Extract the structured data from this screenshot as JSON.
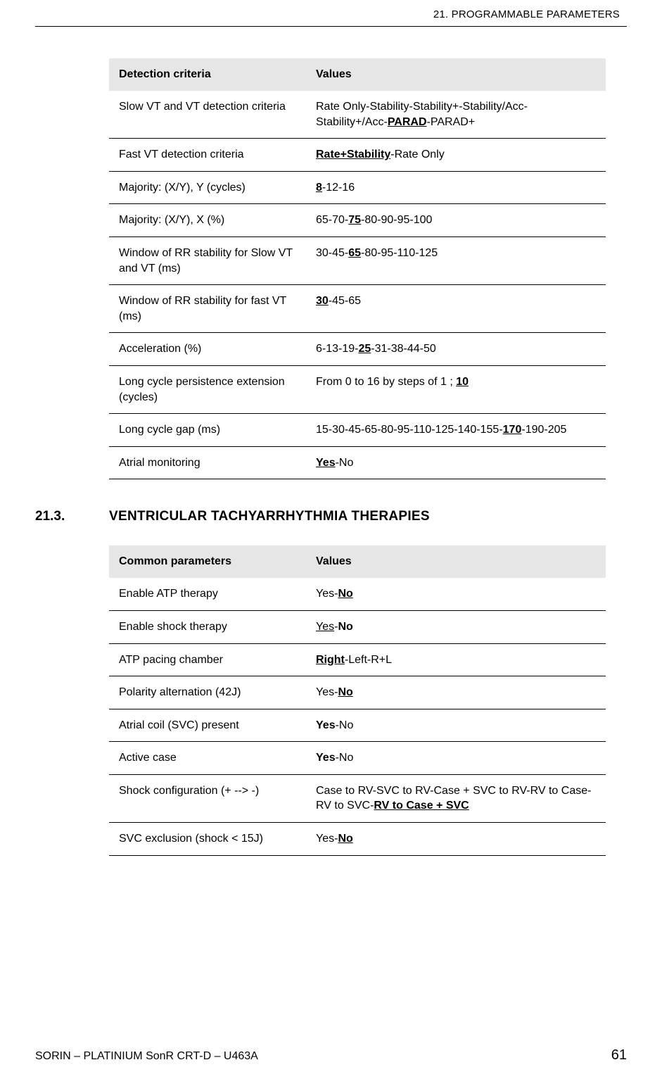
{
  "header": {
    "chapter": "21.  PROGRAMMABLE PARAMETERS"
  },
  "table1": {
    "col1": "Detection criteria",
    "col2": "Values",
    "rows": [
      {
        "label": "Slow VT and VT detection criteria",
        "value_segments": [
          {
            "t": "Rate Only-Stability-Stability+-Stability/Acc-Stability+/Acc-"
          },
          {
            "t": "PARAD",
            "def": true
          },
          {
            "t": "-PARAD+"
          }
        ]
      },
      {
        "label": "Fast VT detection criteria",
        "value_segments": [
          {
            "t": "Rate+Stability",
            "def": true
          },
          {
            "t": "-Rate Only"
          }
        ]
      },
      {
        "label": "Majority: (X/Y), Y (cycles)",
        "value_segments": [
          {
            "t": "8",
            "def": true
          },
          {
            "t": "-12-16"
          }
        ]
      },
      {
        "label": "Majority: (X/Y), X (%)",
        "value_segments": [
          {
            "t": "65-70-"
          },
          {
            "t": "75",
            "def": true
          },
          {
            "t": "-80-90-95-100"
          }
        ]
      },
      {
        "label": "Window of RR stability for Slow VT and VT (ms)",
        "value_segments": [
          {
            "t": "30-45-"
          },
          {
            "t": "65",
            "def": true
          },
          {
            "t": "-80-95-110-125"
          }
        ]
      },
      {
        "label": "Window of RR stability for fast VT (ms)",
        "value_segments": [
          {
            "t": "30",
            "def": true
          },
          {
            "t": "-45-65"
          }
        ]
      },
      {
        "label": "Acceleration (%)",
        "value_segments": [
          {
            "t": "6-13-19-"
          },
          {
            "t": "25",
            "def": true
          },
          {
            "t": "-31-38-44-50"
          }
        ]
      },
      {
        "label": "Long cycle persistence extension (cycles)",
        "value_segments": [
          {
            "t": "From 0 to 16 by steps of 1 ; "
          },
          {
            "t": "10",
            "def": true
          }
        ]
      },
      {
        "label": "Long cycle gap (ms)",
        "value_segments": [
          {
            "t": "15-30-45-65-80-95-110-125-140-155-"
          },
          {
            "t": "170",
            "def": true
          },
          {
            "t": "-190-205"
          }
        ]
      },
      {
        "label": "Atrial monitoring",
        "value_segments": [
          {
            "t": "Yes",
            "def": true
          },
          {
            "t": "-No"
          }
        ]
      }
    ]
  },
  "section": {
    "number": "21.3.",
    "title": "VENTRICULAR TACHYARRHYTHMIA THERAPIES"
  },
  "table2": {
    "col1": "Common parameters",
    "col2": "Values",
    "rows": [
      {
        "label": "Enable ATP therapy",
        "value_segments": [
          {
            "t": "Yes-"
          },
          {
            "t": "No",
            "def": true
          }
        ]
      },
      {
        "label": "Enable shock therapy",
        "value_segments": [
          {
            "t": "Yes",
            "u": true
          },
          {
            "t": "-"
          },
          {
            "t": "No",
            "bold": true
          }
        ]
      },
      {
        "label": "ATP pacing chamber",
        "value_segments": [
          {
            "t": "Right",
            "def": true
          },
          {
            "t": "-Left-R+L"
          }
        ]
      },
      {
        "label": "Polarity alternation (42J)",
        "value_segments": [
          {
            "t": "Yes-"
          },
          {
            "t": "No",
            "def": true
          }
        ]
      },
      {
        "label": "Atrial coil (SVC) present",
        "value_segments": [
          {
            "t": "Yes",
            "bold": true
          },
          {
            "t": "-No"
          }
        ]
      },
      {
        "label": "Active case",
        "value_segments": [
          {
            "t": "Yes",
            "bold": true
          },
          {
            "t": "-No"
          }
        ]
      },
      {
        "label": "Shock configuration (+ --> -)",
        "value_segments": [
          {
            "t": "Case to RV-SVC to RV-Case + SVC to RV-RV to Case-RV to SVC-"
          },
          {
            "t": "RV to Case + SVC",
            "def": true
          }
        ]
      },
      {
        "label": "SVC exclusion (shock < 15J)",
        "value_segments": [
          {
            "t": "Yes-"
          },
          {
            "t": "No",
            "def": true
          }
        ]
      }
    ]
  },
  "footer": {
    "doc": "SORIN – PLATINIUM SonR CRT-D – U463A",
    "page": "61"
  }
}
